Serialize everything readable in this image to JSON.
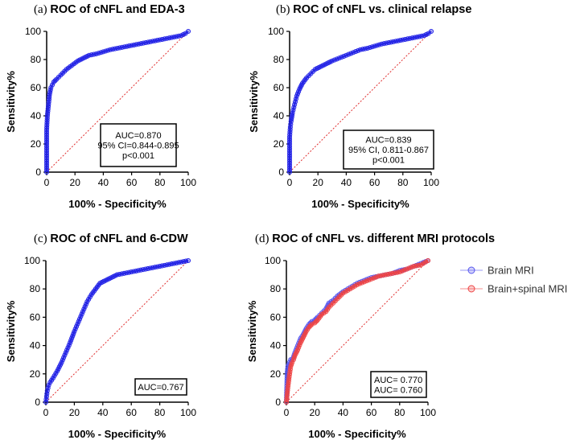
{
  "chart_data": [
    {
      "id": "a",
      "type": "line",
      "title_prefix": "(a)",
      "title": "ROC of cNFL and EDA-3",
      "xlabel": "100% - Specificity%",
      "ylabel": "Sensitivity%",
      "xlim": [
        0,
        100
      ],
      "ylim": [
        0,
        100
      ],
      "xticks": [
        "0",
        "20",
        "40",
        "60",
        "80",
        "100"
      ],
      "yticks": [
        "0",
        "20",
        "40",
        "60",
        "80",
        "100"
      ],
      "annotation": [
        "AUC=0.870",
        "95% CI=0.844-0.895",
        "p<0.001"
      ],
      "annotation_colors": [
        "#000000",
        "#000000",
        "#000000"
      ],
      "series": [
        {
          "name": "cNFL",
          "color": "#2323e6",
          "x": [
            0,
            0,
            0.5,
            1,
            1.5,
            2,
            3,
            4,
            5,
            7,
            10,
            14,
            18,
            22,
            26,
            30,
            35,
            40,
            45,
            50,
            55,
            60,
            65,
            70,
            75,
            80,
            85,
            90,
            95,
            98,
            100
          ],
          "y": [
            0,
            30,
            40,
            45,
            50,
            55,
            60,
            62,
            64,
            66,
            69,
            73,
            76,
            79,
            81,
            83,
            84,
            85.5,
            87,
            88,
            89,
            90,
            91,
            92,
            93,
            94,
            95,
            96,
            97,
            98.5,
            100
          ]
        }
      ]
    },
    {
      "id": "b",
      "type": "line",
      "title_prefix": "(b)",
      "title": "ROC of cNFL vs. clinical relapse",
      "xlabel": "100% - Specificity%",
      "ylabel": "Sensitivity%",
      "xlim": [
        0,
        100
      ],
      "ylim": [
        0,
        100
      ],
      "xticks": [
        "0",
        "20",
        "40",
        "60",
        "80",
        "100"
      ],
      "yticks": [
        "0",
        "20",
        "40",
        "60",
        "80",
        "100"
      ],
      "annotation": [
        "AUC=0.839",
        "95% CI, 0.811-0.867",
        "p<0.001"
      ],
      "annotation_colors": [
        "#000000",
        "#000000",
        "#000000"
      ],
      "series": [
        {
          "name": "cNFL",
          "color": "#2323e6",
          "x": [
            0,
            0,
            0.5,
            1,
            2,
            3,
            4,
            5,
            7,
            9,
            12,
            15,
            18,
            22,
            26,
            30,
            35,
            40,
            45,
            50,
            55,
            60,
            65,
            70,
            75,
            80,
            85,
            90,
            95,
            98,
            100
          ],
          "y": [
            0,
            25,
            32,
            36,
            42,
            46,
            50,
            54,
            59,
            63,
            67,
            70,
            73,
            75,
            77,
            79,
            81,
            83,
            85,
            87,
            88,
            89.5,
            91,
            92,
            93,
            94,
            95,
            96,
            97,
            98.5,
            100
          ]
        }
      ]
    },
    {
      "id": "c",
      "type": "line",
      "title_prefix": "(c)",
      "title": "ROC of cNFL and 6-CDW",
      "xlabel": "100% - Specificity%",
      "ylabel": "Sensitivity%",
      "xlim": [
        0,
        100
      ],
      "ylim": [
        0,
        100
      ],
      "xticks": [
        "0",
        "20",
        "40",
        "60",
        "80",
        "100"
      ],
      "yticks": [
        "0",
        "20",
        "40",
        "60",
        "80",
        "100"
      ],
      "annotation": [
        "AUC=0.767"
      ],
      "annotation_colors": [
        "#000000"
      ],
      "series": [
        {
          "name": "cNFL",
          "color": "#2323e6",
          "x": [
            0,
            0.5,
            1,
            2,
            3,
            5,
            8,
            11,
            14,
            17,
            20,
            23,
            26,
            29,
            32,
            35,
            38,
            42,
            46,
            50,
            55,
            60,
            65,
            70,
            75,
            80,
            85,
            90,
            95,
            100
          ],
          "y": [
            0,
            4,
            8,
            12,
            14,
            17,
            22,
            28,
            35,
            42,
            50,
            57,
            64,
            71,
            76,
            80,
            84,
            86,
            88,
            90,
            91,
            92,
            93,
            94,
            95,
            96,
            97,
            98,
            99,
            100
          ]
        }
      ]
    },
    {
      "id": "d",
      "type": "line",
      "title_prefix": "(d)",
      "title": "ROC of cNFL vs. different MRI protocols",
      "xlabel": "100% - Specificity%",
      "ylabel": "Sensitivity%",
      "xlim": [
        0,
        100
      ],
      "ylim": [
        0,
        100
      ],
      "xticks": [
        "0",
        "20",
        "40",
        "60",
        "80",
        "100"
      ],
      "yticks": [
        "0",
        "20",
        "40",
        "60",
        "80",
        "100"
      ],
      "annotation": [
        "AUC= 0.770",
        "AUC= 0.760"
      ],
      "annotation_colors": [
        "#2b2bd6",
        "#e01e1e"
      ],
      "legend": [
        "Brain MRI",
        "Brain+spinal MRI"
      ],
      "legend_position": "right",
      "series": [
        {
          "name": "Brain MRI",
          "color": "#5555ee",
          "x": [
            0,
            0.5,
            1,
            2,
            3,
            4,
            5,
            6,
            8,
            10,
            12,
            14,
            16,
            18,
            20,
            22,
            25,
            28,
            30,
            33,
            36,
            40,
            45,
            50,
            55,
            60,
            65,
            70,
            75,
            80,
            85,
            90,
            95,
            100
          ],
          "y": [
            0,
            20,
            25,
            28,
            30,
            30,
            32,
            35,
            40,
            45,
            48,
            52,
            55,
            57,
            58,
            60,
            63,
            66,
            70,
            72,
            75,
            78,
            81,
            84,
            86,
            88,
            89,
            90,
            91,
            93,
            94,
            96,
            98,
            100
          ]
        },
        {
          "name": "Brain+spinal MRI",
          "color": "#ee4444",
          "x": [
            0,
            0.5,
            1,
            2,
            3,
            4,
            5,
            6,
            8,
            10,
            12,
            14,
            16,
            18,
            20,
            22,
            25,
            28,
            30,
            33,
            36,
            40,
            45,
            50,
            55,
            60,
            65,
            70,
            75,
            80,
            85,
            90,
            95,
            100
          ],
          "y": [
            0,
            5,
            10,
            18,
            25,
            28,
            30,
            33,
            37,
            42,
            46,
            50,
            53,
            55,
            56,
            58,
            62,
            64,
            67,
            70,
            73,
            77,
            80,
            83,
            85,
            87,
            89,
            90,
            91,
            92,
            94,
            96,
            97,
            100
          ]
        }
      ]
    }
  ]
}
